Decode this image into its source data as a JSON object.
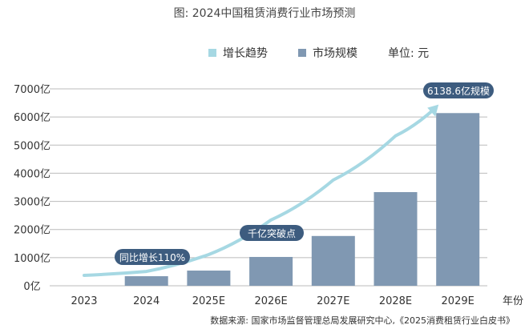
{
  "chart_data": {
    "type": "bar",
    "title": "图: 2024中国租赁消费行业市场预测",
    "xlabel": "年份",
    "ylabel": "",
    "unit_label": "单位: 元",
    "categories": [
      "2023",
      "2024",
      "2025E",
      "2026E",
      "2027E",
      "2028E",
      "2029E"
    ],
    "ylim": [
      0,
      7000
    ],
    "yticks": [
      0,
      1000,
      2000,
      3000,
      4000,
      5000,
      6000,
      7000
    ],
    "ytick_labels": [
      "0亿",
      "1000亿",
      "2000亿",
      "3000亿",
      "4000亿",
      "5000亿",
      "6000亿",
      "7000亿"
    ],
    "grid": true,
    "legend_position": "top",
    "series": [
      {
        "name": "市场规模",
        "type": "bar",
        "color": "#8098b2",
        "values": [
          null,
          340,
          540,
          1025,
          1770,
          3330,
          6138.6
        ]
      },
      {
        "name": "增长趋势",
        "type": "line",
        "color": "#a6d8e3",
        "values": [
          370,
          510,
          1110,
          2340,
          3760,
          5330,
          6270
        ]
      }
    ],
    "annotations": [
      "同比增长110%",
      "千亿突破点",
      "6138.6亿规模"
    ],
    "annotation_color": "#3d5c7f",
    "source": "数据来源: 国家市场监督管理总局发展研究中心,《2025消费租赁行业白皮书》"
  }
}
